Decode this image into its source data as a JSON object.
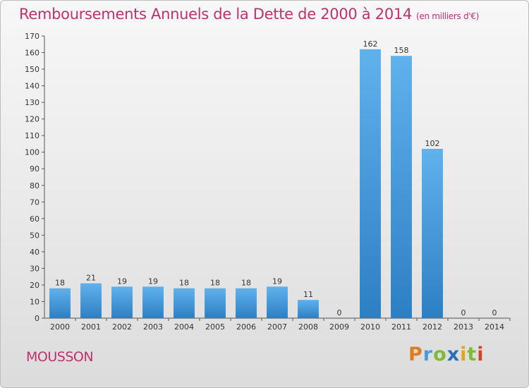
{
  "header": {
    "title": "Remboursements Annuels de la Dette de 2000 à 2014",
    "unit": "(en milliers d'€)"
  },
  "footer": {
    "commune": "MOUSSON",
    "brand": "Proxiti"
  },
  "colors": {
    "accent": "#c0306e",
    "bar_light": "#5fb2ec",
    "bar_dark": "#2d7fc4"
  },
  "chart_data": {
    "type": "bar",
    "title": "Remboursements Annuels de la Dette de 2000 à 2014",
    "subtitle": "(en milliers d'€)",
    "categories": [
      "2000",
      "2001",
      "2002",
      "2003",
      "2004",
      "2005",
      "2006",
      "2007",
      "2008",
      "2009",
      "2010",
      "2011",
      "2012",
      "2013",
      "2014"
    ],
    "values": [
      18,
      21,
      19,
      19,
      18,
      18,
      18,
      19,
      11,
      0,
      162,
      158,
      102,
      0,
      0
    ],
    "ylim": [
      0,
      170
    ],
    "yticks": [
      0,
      10,
      20,
      30,
      40,
      50,
      60,
      70,
      80,
      90,
      100,
      110,
      120,
      130,
      140,
      150,
      160,
      170
    ],
    "grid": false,
    "legend": "none"
  }
}
